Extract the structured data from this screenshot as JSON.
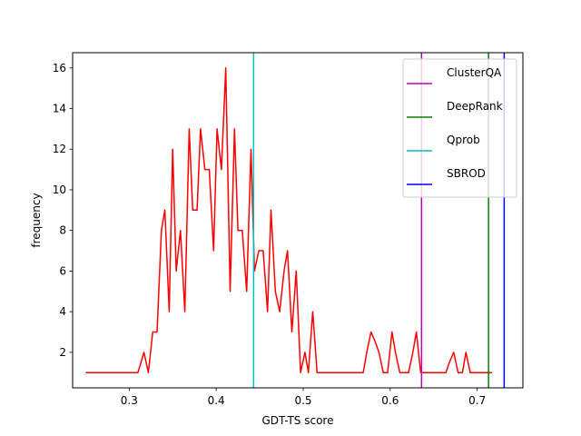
{
  "chart_data": {
    "type": "line",
    "title": "",
    "xlabel": "GDT-TS score",
    "ylabel": "frequency",
    "xlim": [
      0.235,
      0.7525
    ],
    "ylim": [
      0.25,
      16.75
    ],
    "xticks": [
      0.3,
      0.4,
      0.5,
      0.6,
      0.7
    ],
    "xtick_labels": [
      "0.3",
      "0.4",
      "0.5",
      "0.6",
      "0.7"
    ],
    "yticks": [
      2,
      4,
      6,
      8,
      10,
      12,
      14,
      16
    ],
    "ytick_labels": [
      "2",
      "4",
      "6",
      "8",
      "10",
      "12",
      "14",
      "16"
    ],
    "grid": false,
    "legend_position": "upper right",
    "series": [
      {
        "color": "#ff0000",
        "x": [
          0.25,
          0.31,
          0.317,
          0.322,
          0.327,
          0.332,
          0.337,
          0.341,
          0.346,
          0.35,
          0.354,
          0.359,
          0.364,
          0.369,
          0.373,
          0.378,
          0.382,
          0.387,
          0.392,
          0.397,
          0.401,
          0.406,
          0.411,
          0.416,
          0.421,
          0.425,
          0.43,
          0.435,
          0.44,
          0.444,
          0.449,
          0.454,
          0.459,
          0.463,
          0.468,
          0.473,
          0.478,
          0.482,
          0.487,
          0.492,
          0.497,
          0.502,
          0.506,
          0.511,
          0.516,
          0.521,
          0.525,
          0.53,
          0.535,
          0.54,
          0.545,
          0.549,
          0.554,
          0.559,
          0.564,
          0.569,
          0.573,
          0.578,
          0.583,
          0.587,
          0.592,
          0.597,
          0.602,
          0.606,
          0.611,
          0.616,
          0.621,
          0.626,
          0.63,
          0.635,
          0.64,
          0.645,
          0.649,
          0.654,
          0.659,
          0.664,
          0.668,
          0.673,
          0.678,
          0.683,
          0.687,
          0.692,
          0.697,
          0.702,
          0.707,
          0.712,
          0.717
        ],
        "y": [
          1,
          1,
          2,
          1,
          3,
          3,
          8,
          9,
          4,
          12,
          6,
          8,
          4,
          13,
          9,
          9,
          13,
          11,
          11,
          7,
          13,
          11,
          16,
          5,
          13,
          8,
          8,
          5,
          12,
          6,
          7,
          7,
          4,
          9,
          5,
          4,
          6,
          7,
          3,
          6,
          1,
          2,
          1,
          4,
          1,
          1,
          1,
          1,
          1,
          1,
          1,
          1,
          1,
          1,
          1,
          1,
          2,
          3,
          2.5,
          2,
          1,
          1,
          3,
          2,
          1,
          1,
          1,
          2,
          3,
          1,
          1,
          1,
          1,
          1,
          1,
          1,
          1.5,
          2,
          1,
          1,
          2,
          1,
          1,
          1,
          1,
          1,
          1
        ]
      }
    ],
    "vlines": [
      {
        "name": "ClusterQA",
        "x": 0.636,
        "color": "#bf00bf"
      },
      {
        "name": "DeepRank",
        "x": 0.713,
        "color": "#008000"
      },
      {
        "name": "Qprob",
        "x": 0.443,
        "color": "#00bfbf"
      },
      {
        "name": "SBROD",
        "x": 0.731,
        "color": "#0000ff"
      }
    ]
  }
}
